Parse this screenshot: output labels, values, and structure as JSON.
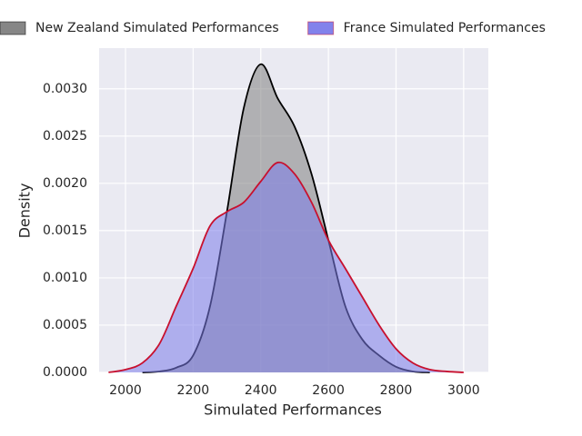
{
  "chart_data": {
    "type": "density",
    "xlabel": "Simulated Performances",
    "ylabel": "Density",
    "x": [
      1950,
      2000,
      2050,
      2100,
      2150,
      2200,
      2250,
      2300,
      2350,
      2400,
      2450,
      2500,
      2550,
      2600,
      2650,
      2700,
      2750,
      2800,
      2850,
      2900,
      2950,
      3000
    ],
    "series": [
      {
        "name": "New Zealand Simulated Performances",
        "color": "#000000",
        "fill": "#808080",
        "values": [
          null,
          null,
          0,
          1e-05,
          5e-05,
          0.00018,
          0.0007,
          0.0017,
          0.0028,
          0.00326,
          0.0029,
          0.0026,
          0.0021,
          0.0014,
          0.0007,
          0.00035,
          0.00018,
          6e-05,
          1e-05,
          0,
          null,
          null
        ]
      },
      {
        "name": "France Simulated Performances",
        "color": "#c8102e",
        "fill": "#7b7bea",
        "values": [
          0,
          3e-05,
          0.0001,
          0.0003,
          0.0007,
          0.0011,
          0.00155,
          0.0017,
          0.0018,
          0.00202,
          0.00222,
          0.0021,
          0.0018,
          0.0014,
          0.0011,
          0.0008,
          0.0005,
          0.00025,
          0.0001,
          3e-05,
          1e-05,
          0
        ]
      }
    ],
    "xlim": [
      1922,
      3073
    ],
    "xticks": [
      2000,
      2200,
      2400,
      2600,
      2800,
      3000
    ],
    "ylim": [
      0,
      0.00343
    ],
    "yticks": [
      {
        "value": 0,
        "label": "0.0000"
      },
      {
        "value": 0.0005,
        "label": "0.0005"
      },
      {
        "value": 0.001,
        "label": "0.0010"
      },
      {
        "value": 0.0015,
        "label": "0.0015"
      },
      {
        "value": 0.002,
        "label": "0.0020"
      },
      {
        "value": 0.0025,
        "label": "0.0025"
      },
      {
        "value": 0.003,
        "label": "0.0030"
      }
    ],
    "grid": true,
    "legend": "top"
  }
}
